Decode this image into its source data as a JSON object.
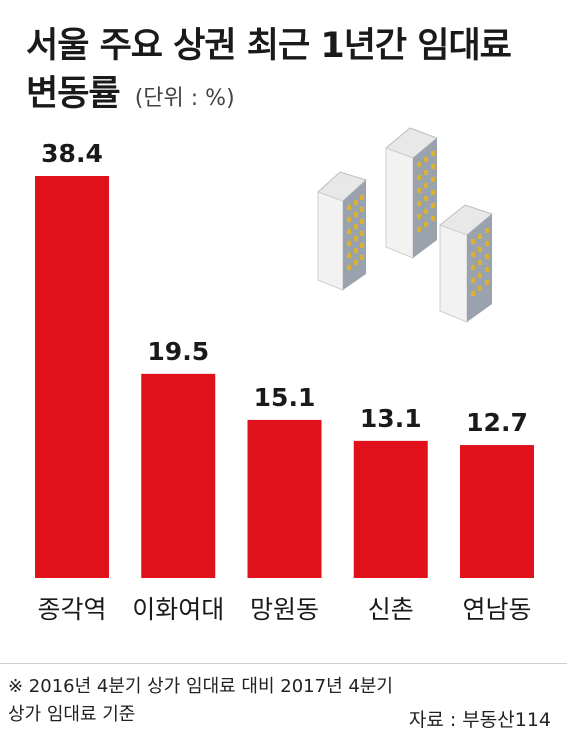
{
  "title_line1": "서울 주요 상권 최근 1년간 임대료",
  "title_line2": "변동률",
  "unit": "(단위 : %)",
  "footnote_line1": "※ 2016년 4분기 상가 임대료 대비 2017년 4분기",
  "footnote_line2": "상가 임대료 기준",
  "source": "자료 : 부동산114",
  "colors": {
    "bar": "#e0111a",
    "text": "#1a1a1a"
  },
  "icon": "office-buildings-icon",
  "chart_data": {
    "type": "bar",
    "categories": [
      "종각역",
      "이화여대",
      "망원동",
      "신촌",
      "연남동"
    ],
    "values": [
      38.4,
      19.5,
      15.1,
      13.1,
      12.7
    ],
    "value_labels": [
      "38.4",
      "19.5",
      "15.1",
      "13.1",
      "12.7"
    ],
    "title": "서울 주요 상권 최근 1년간 임대료 변동률",
    "ylabel": "",
    "ylim": [
      0,
      38.4
    ],
    "grid": false,
    "legend": "none"
  }
}
